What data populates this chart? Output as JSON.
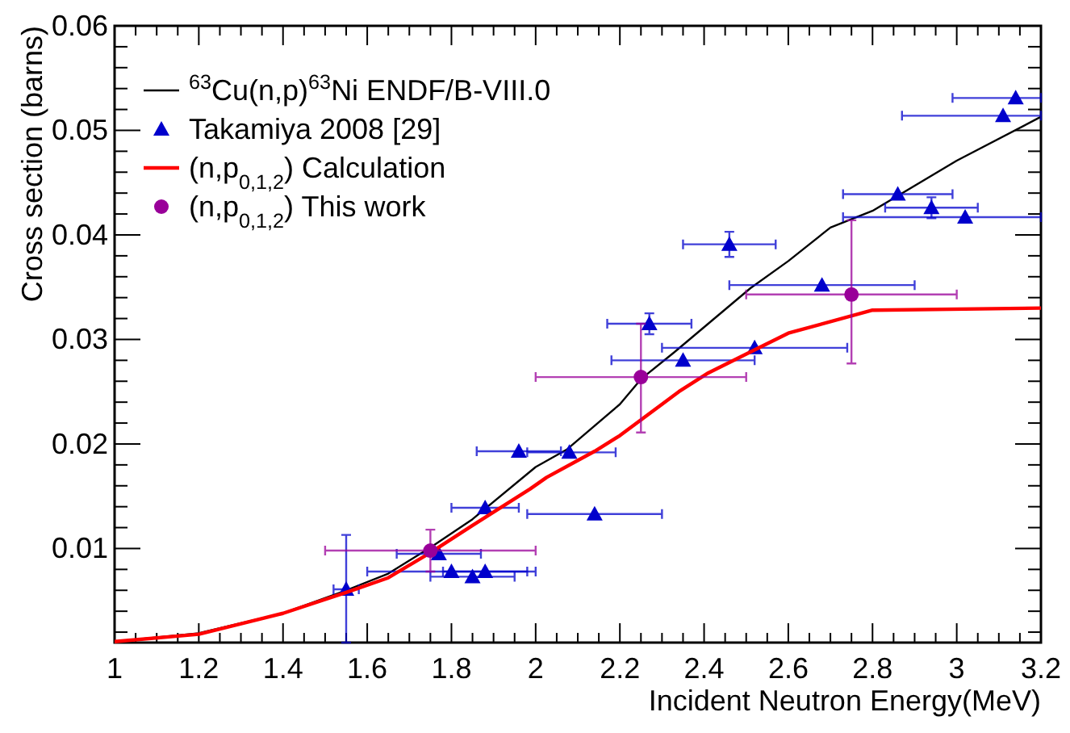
{
  "chart_data": {
    "type": "line",
    "xlabel": "Incident Neutron Energy(MeV)",
    "ylabel": "Cross section (barns)",
    "xlim": [
      1,
      3.2
    ],
    "ylim": [
      0.001,
      0.06
    ],
    "xticks": [
      1,
      {
        "value": 1.05,
        "label": null
      },
      {
        "value": 1.1,
        "label": null
      },
      {
        "value": 1.15,
        "label": null
      },
      1.2,
      {
        "value": 1.25,
        "label": null
      },
      {
        "value": 1.3,
        "label": null
      },
      {
        "value": 1.35,
        "label": null
      },
      1.4,
      {
        "value": 1.45,
        "label": null
      },
      {
        "value": 1.5,
        "label": null
      },
      {
        "value": 1.55,
        "label": null
      },
      1.6,
      {
        "value": 1.65,
        "label": null
      },
      {
        "value": 1.7,
        "label": null
      },
      {
        "value": 1.75,
        "label": null
      },
      1.8,
      {
        "value": 1.85,
        "label": null
      },
      {
        "value": 1.9,
        "label": null
      },
      {
        "value": 1.95,
        "label": null
      },
      2,
      {
        "value": 2.05,
        "label": null
      },
      {
        "value": 2.1,
        "label": null
      },
      {
        "value": 2.15,
        "label": null
      },
      2.2,
      {
        "value": 2.25,
        "label": null
      },
      {
        "value": 2.3,
        "label": null
      },
      {
        "value": 2.35,
        "label": null
      },
      2.4,
      {
        "value": 2.45,
        "label": null
      },
      {
        "value": 2.5,
        "label": null
      },
      {
        "value": 2.55,
        "label": null
      },
      2.6,
      {
        "value": 2.65,
        "label": null
      },
      {
        "value": 2.7,
        "label": null
      },
      {
        "value": 2.75,
        "label": null
      },
      2.8,
      {
        "value": 2.85,
        "label": null
      },
      {
        "value": 2.9,
        "label": null
      },
      {
        "value": 2.95,
        "label": null
      },
      3,
      {
        "value": 3.05,
        "label": null
      },
      {
        "value": 3.1,
        "label": null
      },
      {
        "value": 3.15,
        "label": null
      },
      3.2
    ],
    "yticks": [
      {
        "value": 0.002,
        "label": null
      },
      {
        "value": 0.004,
        "label": null
      },
      {
        "value": 0.006,
        "label": null
      },
      {
        "value": 0.008,
        "label": null
      },
      0.01,
      {
        "value": 0.012,
        "label": null
      },
      {
        "value": 0.014,
        "label": null
      },
      {
        "value": 0.016,
        "label": null
      },
      {
        "value": 0.018,
        "label": null
      },
      0.02,
      {
        "value": 0.022,
        "label": null
      },
      {
        "value": 0.024,
        "label": null
      },
      {
        "value": 0.026,
        "label": null
      },
      {
        "value": 0.028,
        "label": null
      },
      0.03,
      {
        "value": 0.032,
        "label": null
      },
      {
        "value": 0.034,
        "label": null
      },
      {
        "value": 0.036,
        "label": null
      },
      {
        "value": 0.038,
        "label": null
      },
      0.04,
      {
        "value": 0.042,
        "label": null
      },
      {
        "value": 0.044,
        "label": null
      },
      {
        "value": 0.046,
        "label": null
      },
      {
        "value": 0.048,
        "label": null
      },
      0.05,
      {
        "value": 0.052,
        "label": null
      },
      {
        "value": 0.054,
        "label": null
      },
      {
        "value": 0.056,
        "label": null
      },
      {
        "value": 0.058,
        "label": null
      },
      0.06
    ],
    "legend": "top left",
    "series": [
      {
        "name": "$^{63}$Cu(n,p)$^{63}$Ni ENDF/B-VIII.0",
        "color": "#000000",
        "marker": "none",
        "line_style": "solid",
        "x": [
          1,
          1.2,
          1.4,
          1.55,
          1.65,
          1.75,
          1.85,
          2,
          2.075,
          2.2,
          2.25,
          2.33,
          2.51,
          2.6,
          2.7,
          2.8,
          3,
          3.2
        ],
        "values": [
          0.0011,
          0.0019,
          0.0038,
          0.006,
          0.0076,
          0.0101,
          0.0128,
          0.0178,
          0.0195,
          0.0238,
          0.0262,
          0.0288,
          0.0349,
          0.0375,
          0.0407,
          0.0423,
          0.0471,
          0.0513
        ]
      },
      {
        "name": "Takamiya 2008 [29]",
        "type": "scatter",
        "color": "#0000cc",
        "marker": "triangle",
        "x": [
          1.55,
          1.77,
          1.8,
          1.85,
          1.88,
          1.88,
          1.96,
          2.08,
          2.14,
          2.27,
          2.35,
          2.46,
          2.52,
          2.68,
          2.86,
          2.94,
          3.02,
          3.11,
          3.14
        ],
        "values": [
          0.0061,
          0.0095,
          0.0078,
          0.0073,
          0.0078,
          0.0139,
          0.0193,
          0.0192,
          0.0133,
          0.0315,
          0.028,
          0.0391,
          0.0292,
          0.0352,
          0.0439,
          0.0426,
          0.0417,
          0.0514,
          0.0531
        ],
        "errors": [
          [
            0.001,
            0.0113
          ],
          null,
          null,
          null,
          null,
          null,
          null,
          null,
          null,
          [
            0.0305,
            0.0325
          ],
          null,
          [
            0.0379,
            0.0403
          ],
          null,
          null,
          null,
          [
            0.0416,
            0.0436
          ],
          null,
          null,
          null
        ],
        "xerrors": [
          [
            1.52,
            1.58
          ],
          [
            1.67,
            1.87
          ],
          [
            1.6,
            2.0
          ],
          [
            1.75,
            1.95
          ],
          [
            1.78,
            1.98
          ],
          [
            1.8,
            1.96
          ],
          [
            1.86,
            2.06
          ],
          [
            1.98,
            2.19
          ],
          [
            1.98,
            2.3
          ],
          [
            2.17,
            2.37
          ],
          [
            2.18,
            2.52
          ],
          [
            2.35,
            2.57
          ],
          [
            2.3,
            2.74
          ],
          [
            2.46,
            2.9
          ],
          [
            2.73,
            2.99
          ],
          [
            2.83,
            3.05
          ],
          [
            2.73,
            3.2
          ],
          [
            2.87,
            3.2
          ],
          [
            2.99,
            3.2
          ]
        ]
      },
      {
        "name": "(n,p$_{0,1,2}$) Calculation",
        "color": "#ff0000",
        "marker": "none",
        "line_style": "solid",
        "x": [
          1,
          1.2,
          1.4,
          1.55,
          1.65,
          1.75,
          1.85,
          1.987,
          2.026,
          2.14,
          2.2,
          2.34,
          2.41,
          2.51,
          2.6,
          2.8,
          3.2
        ],
        "values": [
          0.0011,
          0.0018,
          0.0038,
          0.0058,
          0.0072,
          0.0096,
          0.0122,
          0.0157,
          0.0168,
          0.0193,
          0.0208,
          0.025,
          0.0268,
          0.0288,
          0.0306,
          0.0328,
          0.033
        ]
      },
      {
        "name": "(n,p$_{0,1,2}$) This work",
        "type": "scatter",
        "color": "#990099",
        "marker": "circle",
        "x": [
          1.75,
          2.25,
          2.75
        ],
        "values": [
          0.0098,
          0.0264,
          0.0343
        ],
        "errors": [
          [
            0.0078,
            0.0118
          ],
          [
            0.0211,
            0.0315
          ],
          [
            0.0277,
            0.0414
          ]
        ],
        "xerrors": [
          [
            1.5,
            2.0
          ],
          [
            2.0,
            2.5
          ],
          [
            2.5,
            3.0
          ]
        ]
      }
    ]
  }
}
